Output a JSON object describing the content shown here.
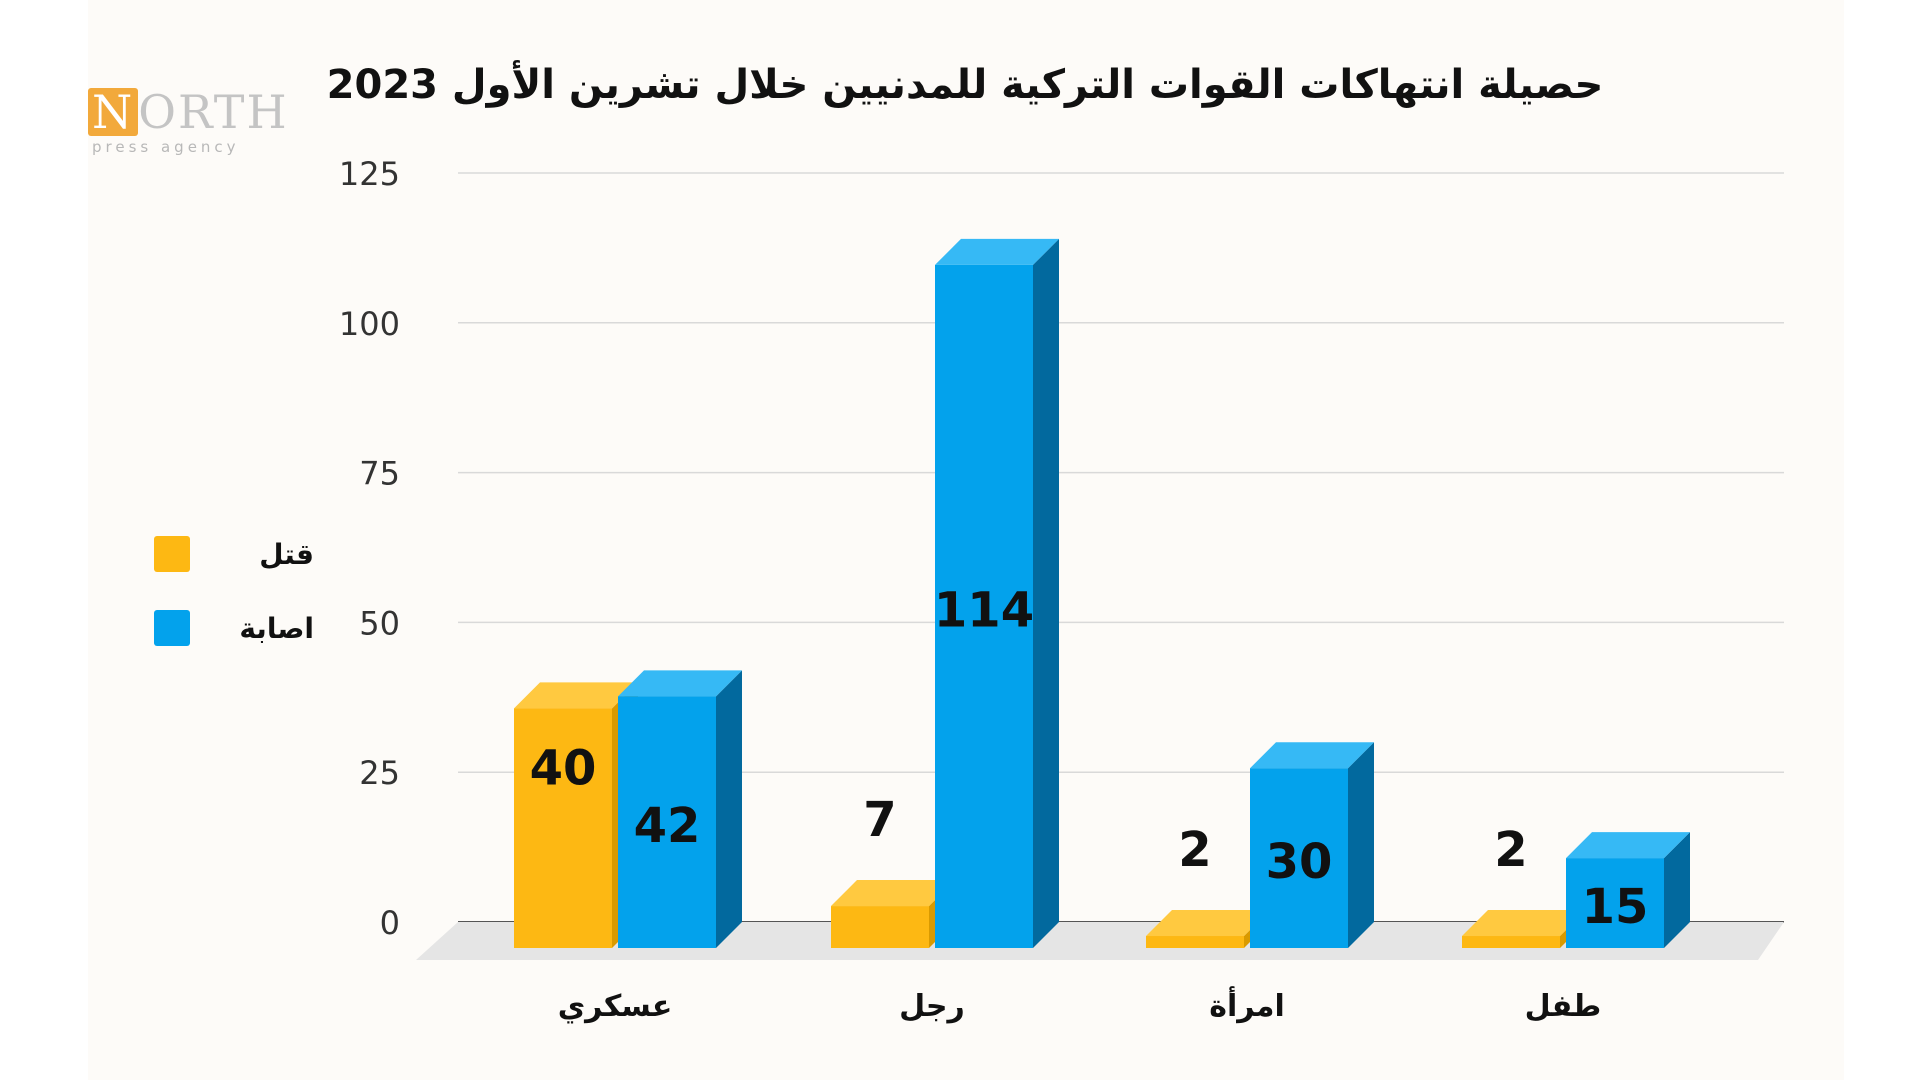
{
  "logo": {
    "brand_first": "N",
    "brand_rest": "ORTH",
    "tagline": "press agency"
  },
  "colors": {
    "killed": "#fdb813",
    "killed_top": "#ffc940",
    "killed_side": "#d99a00",
    "injured": "#03a2ec",
    "injured_top": "#36b9f5",
    "injured_side": "#02699e",
    "grid": "#d9d9d9",
    "floor": "#e5e5e5"
  },
  "chart_data": {
    "type": "bar",
    "title": "حصيلة انتهاكات القوات التركية للمدنيين خلال تشرين الأول 2023",
    "categories": [
      "عسكري",
      "رجل",
      "امرأة",
      "طفل"
    ],
    "series": [
      {
        "name": "قتل",
        "values": [
          40,
          7,
          2,
          2
        ]
      },
      {
        "name": "اصابة",
        "values": [
          42,
          114,
          30,
          15
        ]
      }
    ],
    "ylim": [
      0,
      125
    ],
    "yticks": [
      0,
      25,
      50,
      75,
      100,
      125
    ],
    "grid": true,
    "legend": "left"
  }
}
